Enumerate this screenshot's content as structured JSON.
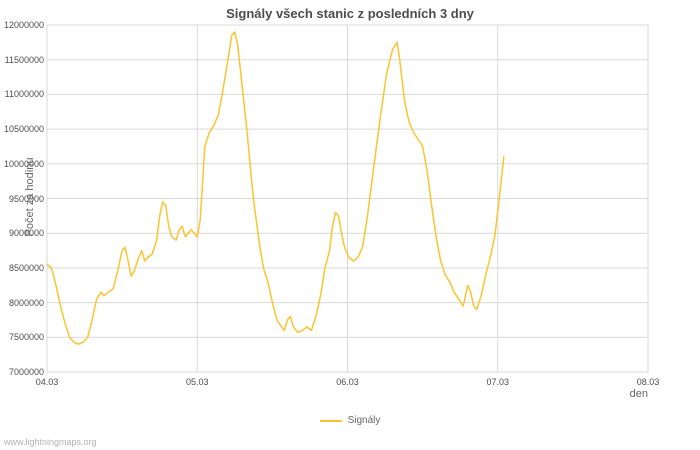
{
  "page": {
    "footer": "www.lightningmaps.org"
  },
  "chart_data": {
    "type": "line",
    "title": "Signály všech stanic z posledních 3 dny",
    "xlabel": "den",
    "ylabel": "Počet za hodinu",
    "grid": true,
    "legend_position": "bottom",
    "line_color": "#FDC430",
    "grid_color": "#d9d9d9",
    "x_domain": [
      0,
      4
    ],
    "y_domain": [
      7000000,
      12000000
    ],
    "xticks": [
      {
        "value": 0,
        "label": "04.03"
      },
      {
        "value": 1,
        "label": "05.03"
      },
      {
        "value": 2,
        "label": "06.03"
      },
      {
        "value": 3,
        "label": "07.03"
      },
      {
        "value": 4,
        "label": "08.03"
      }
    ],
    "yticks": [
      {
        "value": 7000000,
        "label": "7000000"
      },
      {
        "value": 7500000,
        "label": "7500000"
      },
      {
        "value": 8000000,
        "label": "8000000"
      },
      {
        "value": 8500000,
        "label": "8500000"
      },
      {
        "value": 9000000,
        "label": "9000000"
      },
      {
        "value": 9500000,
        "label": "9500000"
      },
      {
        "value": 10000000,
        "label": "10000000"
      },
      {
        "value": 10500000,
        "label": "10500000"
      },
      {
        "value": 11000000,
        "label": "11000000"
      },
      {
        "value": 11500000,
        "label": "11500000"
      },
      {
        "value": 12000000,
        "label": "12000000"
      }
    ],
    "series": [
      {
        "name": "Signály",
        "points": [
          [
            0.0,
            8550000
          ],
          [
            0.03,
            8500000
          ],
          [
            0.06,
            8250000
          ],
          [
            0.09,
            7950000
          ],
          [
            0.12,
            7700000
          ],
          [
            0.15,
            7500000
          ],
          [
            0.18,
            7430000
          ],
          [
            0.21,
            7400000
          ],
          [
            0.24,
            7430000
          ],
          [
            0.27,
            7500000
          ],
          [
            0.3,
            7750000
          ],
          [
            0.33,
            8050000
          ],
          [
            0.36,
            8150000
          ],
          [
            0.38,
            8100000
          ],
          [
            0.41,
            8150000
          ],
          [
            0.44,
            8200000
          ],
          [
            0.47,
            8450000
          ],
          [
            0.5,
            8750000
          ],
          [
            0.52,
            8800000
          ],
          [
            0.54,
            8600000
          ],
          [
            0.56,
            8380000
          ],
          [
            0.58,
            8450000
          ],
          [
            0.61,
            8650000
          ],
          [
            0.63,
            8750000
          ],
          [
            0.65,
            8600000
          ],
          [
            0.67,
            8650000
          ],
          [
            0.7,
            8700000
          ],
          [
            0.73,
            8900000
          ],
          [
            0.75,
            9250000
          ],
          [
            0.77,
            9450000
          ],
          [
            0.79,
            9400000
          ],
          [
            0.81,
            9100000
          ],
          [
            0.83,
            8950000
          ],
          [
            0.86,
            8900000
          ],
          [
            0.88,
            9050000
          ],
          [
            0.9,
            9100000
          ],
          [
            0.92,
            8950000
          ],
          [
            0.94,
            9000000
          ],
          [
            0.96,
            9050000
          ],
          [
            0.98,
            9000000
          ],
          [
            1.0,
            8950000
          ],
          [
            1.02,
            9200000
          ],
          [
            1.05,
            10250000
          ],
          [
            1.08,
            10450000
          ],
          [
            1.11,
            10550000
          ],
          [
            1.14,
            10700000
          ],
          [
            1.17,
            11050000
          ],
          [
            1.2,
            11450000
          ],
          [
            1.23,
            11850000
          ],
          [
            1.25,
            11900000
          ],
          [
            1.27,
            11700000
          ],
          [
            1.3,
            11100000
          ],
          [
            1.33,
            10500000
          ],
          [
            1.36,
            9800000
          ],
          [
            1.38,
            9400000
          ],
          [
            1.41,
            8900000
          ],
          [
            1.44,
            8500000
          ],
          [
            1.47,
            8300000
          ],
          [
            1.5,
            8000000
          ],
          [
            1.53,
            7750000
          ],
          [
            1.56,
            7650000
          ],
          [
            1.58,
            7600000
          ],
          [
            1.6,
            7750000
          ],
          [
            1.62,
            7800000
          ],
          [
            1.64,
            7650000
          ],
          [
            1.67,
            7570000
          ],
          [
            1.7,
            7600000
          ],
          [
            1.73,
            7650000
          ],
          [
            1.76,
            7600000
          ],
          [
            1.79,
            7800000
          ],
          [
            1.82,
            8100000
          ],
          [
            1.85,
            8500000
          ],
          [
            1.88,
            8750000
          ],
          [
            1.9,
            9100000
          ],
          [
            1.92,
            9300000
          ],
          [
            1.94,
            9250000
          ],
          [
            1.96,
            9000000
          ],
          [
            1.98,
            8800000
          ],
          [
            2.01,
            8650000
          ],
          [
            2.04,
            8600000
          ],
          [
            2.07,
            8650000
          ],
          [
            2.1,
            8800000
          ],
          [
            2.13,
            9200000
          ],
          [
            2.16,
            9700000
          ],
          [
            2.19,
            10200000
          ],
          [
            2.22,
            10700000
          ],
          [
            2.26,
            11300000
          ],
          [
            2.3,
            11650000
          ],
          [
            2.33,
            11750000
          ],
          [
            2.35,
            11450000
          ],
          [
            2.38,
            10900000
          ],
          [
            2.41,
            10600000
          ],
          [
            2.44,
            10450000
          ],
          [
            2.47,
            10350000
          ],
          [
            2.5,
            10250000
          ],
          [
            2.53,
            9900000
          ],
          [
            2.56,
            9400000
          ],
          [
            2.59,
            8950000
          ],
          [
            2.62,
            8600000
          ],
          [
            2.65,
            8400000
          ],
          [
            2.68,
            8300000
          ],
          [
            2.71,
            8150000
          ],
          [
            2.74,
            8050000
          ],
          [
            2.77,
            7950000
          ],
          [
            2.8,
            8250000
          ],
          [
            2.82,
            8150000
          ],
          [
            2.84,
            7950000
          ],
          [
            2.86,
            7900000
          ],
          [
            2.89,
            8100000
          ],
          [
            2.92,
            8400000
          ],
          [
            2.95,
            8650000
          ],
          [
            2.98,
            8950000
          ],
          [
            3.01,
            9500000
          ],
          [
            3.04,
            10100000
          ]
        ]
      }
    ]
  }
}
